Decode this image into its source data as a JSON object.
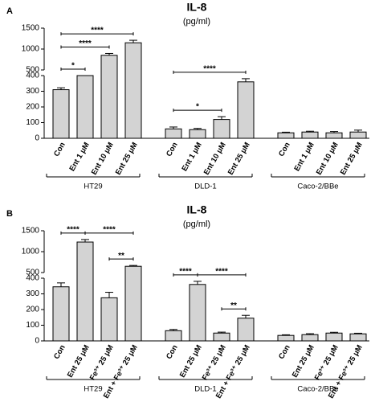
{
  "chart_data": [
    {
      "type": "bar",
      "panel": "A",
      "title": "IL-8",
      "subtitle": "(pg/ml)",
      "color": "#d3d3d3",
      "ylim": [
        0,
        1500
      ],
      "y_break": [
        400,
        500
      ],
      "yticks": [
        0,
        100,
        200,
        300,
        400,
        500,
        1000,
        1500
      ],
      "groups": [
        {
          "name": "HT29",
          "categories": [
            "Con",
            "Ent 1 μM",
            "Ent 10 μM",
            "Ent 25 μM"
          ],
          "values": [
            310,
            400,
            850,
            1150
          ],
          "errors": [
            12,
            10,
            45,
            60
          ],
          "comparisons": [
            {
              "from": 0,
              "to": 1,
              "label": "*"
            },
            {
              "from": 0,
              "to": 2,
              "label": "****"
            },
            {
              "from": 0,
              "to": 3,
              "label": "****"
            }
          ]
        },
        {
          "name": "DLD-1",
          "categories": [
            "Con",
            "Ent 1 μM",
            "Ent 10 μM",
            "Ent 25 μM"
          ],
          "values": [
            60,
            55,
            120,
            360
          ],
          "errors": [
            12,
            8,
            18,
            20
          ],
          "comparisons": [
            {
              "from": 0,
              "to": 2,
              "label": "*"
            },
            {
              "from": 0,
              "to": 3,
              "label": "****"
            }
          ]
        },
        {
          "name": "Caco-2/BBe",
          "categories": [
            "Con",
            "Ent 1 μM",
            "Ent 10 μM",
            "Ent 25 μM"
          ],
          "values": [
            35,
            40,
            35,
            40
          ],
          "errors": [
            4,
            5,
            8,
            12
          ],
          "comparisons": []
        }
      ]
    },
    {
      "type": "bar",
      "panel": "B",
      "title": "IL-8",
      "subtitle": "(pg/ml)",
      "color": "#d3d3d3",
      "ylim": [
        0,
        1500
      ],
      "y_break": [
        400,
        500
      ],
      "yticks": [
        0,
        100,
        200,
        300,
        400,
        500,
        1000,
        1500
      ],
      "groups": [
        {
          "name": "HT29",
          "categories": [
            "Con",
            "Ent 25 μM",
            "Fe³⁺ 25 μM",
            "Ent + Fe³⁺ 25 μM"
          ],
          "values": [
            345,
            1230,
            275,
            650
          ],
          "errors": [
            25,
            60,
            35,
            20
          ],
          "comparisons": [
            {
              "from": 0,
              "to": 1,
              "label": "****"
            },
            {
              "from": 1,
              "to": 3,
              "label": "****"
            },
            {
              "from": 2,
              "to": 3,
              "label": "**"
            }
          ]
        },
        {
          "name": "DLD-1",
          "categories": [
            "Con",
            "Ent 25 μM",
            "Fe³⁺ 25 μM",
            "Ent + Fe³⁺ 25 μM"
          ],
          "values": [
            65,
            360,
            50,
            145
          ],
          "errors": [
            8,
            20,
            6,
            18
          ],
          "comparisons": [
            {
              "from": 0,
              "to": 1,
              "label": "****"
            },
            {
              "from": 1,
              "to": 3,
              "label": "****"
            },
            {
              "from": 2,
              "to": 3,
              "label": "**"
            }
          ]
        },
        {
          "name": "Caco-2/BBe",
          "categories": [
            "Con",
            "Ent 25 μM",
            "Fe³⁺ 25 μM",
            "Ent + Fe³⁺ 25 μM"
          ],
          "values": [
            35,
            40,
            50,
            45
          ],
          "errors": [
            4,
            6,
            5,
            4
          ],
          "comparisons": []
        }
      ]
    }
  ]
}
